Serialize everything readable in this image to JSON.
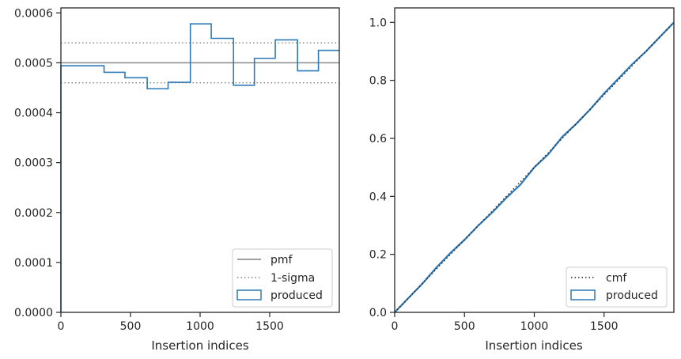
{
  "colors": {
    "produced": "#2e7ab8",
    "pmf": "#808080",
    "sigma": "#808080",
    "cmf": "#222222",
    "axis": "#262626"
  },
  "chart_data": [
    {
      "type": "step",
      "xlabel": "Insertion indices",
      "ylabel": "",
      "xlim": [
        0,
        2000
      ],
      "ylim": [
        0,
        0.00061
      ],
      "x_ticks": [
        0,
        500,
        1000,
        1500
      ],
      "x_tick_labels": [
        "0",
        "500",
        "1000",
        "1500"
      ],
      "y_ticks": [
        0,
        0.0001,
        0.0002,
        0.0003,
        0.0004,
        0.0005,
        0.0006
      ],
      "y_tick_labels": [
        "0.0000",
        "0.0001",
        "0.0002",
        "0.0003",
        "0.0004",
        "0.0005",
        "0.0006"
      ],
      "pmf": 0.0005,
      "sigma_lines": [
        0.00046,
        0.00054
      ],
      "bin_edges": [
        0,
        310,
        460,
        620,
        770,
        930,
        1080,
        1240,
        1390,
        1540,
        1700,
        1850,
        2000
      ],
      "produced": [
        0.000494,
        0.000481,
        0.00047,
        0.000448,
        0.000461,
        0.000578,
        0.000549,
        0.000455,
        0.000509,
        0.000546,
        0.000484,
        0.000525
      ],
      "legend": {
        "position": "lower right",
        "entries": [
          "pmf",
          "1-sigma",
          "produced"
        ]
      }
    },
    {
      "type": "step",
      "xlabel": "Insertion indices",
      "ylabel": "",
      "xlim": [
        0,
        2000
      ],
      "ylim": [
        0,
        1.05
      ],
      "x_ticks": [
        0,
        500,
        1000,
        1500
      ],
      "x_tick_labels": [
        "0",
        "500",
        "1000",
        "1500"
      ],
      "y_ticks": [
        0,
        0.2,
        0.4,
        0.6,
        0.8,
        1.0
      ],
      "y_tick_labels": [
        "0.0",
        "0.2",
        "0.4",
        "0.6",
        "0.8",
        "1.0"
      ],
      "cmf": {
        "x": [
          0,
          2000
        ],
        "y": [
          0,
          1.0
        ]
      },
      "produced": {
        "x": [
          0,
          100,
          200,
          300,
          400,
          500,
          600,
          700,
          800,
          900,
          1000,
          1100,
          1200,
          1300,
          1400,
          1500,
          1600,
          1700,
          1800,
          1900,
          2000
        ],
        "y": [
          0,
          0.05,
          0.1,
          0.155,
          0.205,
          0.25,
          0.3,
          0.345,
          0.395,
          0.44,
          0.5,
          0.545,
          0.605,
          0.65,
          0.7,
          0.755,
          0.805,
          0.855,
          0.9,
          0.95,
          1.0
        ]
      },
      "legend": {
        "position": "lower right",
        "entries": [
          "cmf",
          "produced"
        ]
      }
    }
  ]
}
